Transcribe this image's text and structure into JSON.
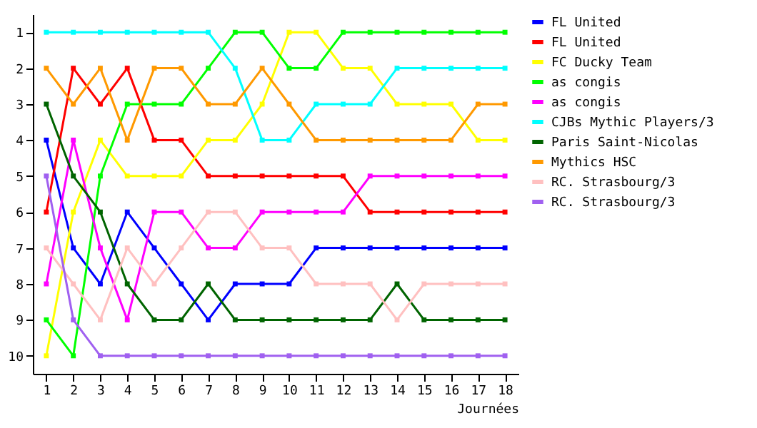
{
  "chart_data": {
    "type": "line",
    "xlabel": "Journées",
    "x": [
      1,
      2,
      3,
      4,
      5,
      6,
      7,
      8,
      9,
      10,
      11,
      12,
      13,
      14,
      15,
      16,
      17,
      18
    ],
    "xlim": [
      0.5,
      18.5
    ],
    "xticks": [
      1,
      2,
      3,
      4,
      5,
      6,
      7,
      8,
      9,
      10,
      11,
      12,
      13,
      14,
      15,
      16,
      17,
      18
    ],
    "ylim": [
      10.5,
      0.5
    ],
    "yticks": [
      1,
      2,
      3,
      4,
      5,
      6,
      7,
      8,
      9,
      10
    ],
    "grid": false,
    "legend": "right",
    "marker": "square",
    "line_style": "solid",
    "series": [
      {
        "name": "FL United",
        "color": "#0000ff",
        "values": [
          4,
          7,
          8,
          6,
          7,
          8,
          9,
          8,
          8,
          8,
          7,
          7,
          7,
          7,
          7,
          7,
          7,
          7
        ]
      },
      {
        "name": "FL United",
        "color": "#ff0000",
        "values": [
          6,
          2,
          3,
          2,
          4,
          4,
          5,
          5,
          5,
          5,
          5,
          5,
          6,
          6,
          6,
          6,
          6,
          6
        ]
      },
      {
        "name": "FC Ducky Team",
        "color": "#ffff00",
        "values": [
          10,
          6,
          4,
          5,
          5,
          5,
          4,
          4,
          3,
          1,
          1,
          2,
          2,
          3,
          3,
          3,
          4,
          4
        ]
      },
      {
        "name": "as congis",
        "color": "#00ff00",
        "values": [
          9,
          10,
          5,
          3,
          3,
          3,
          2,
          1,
          1,
          2,
          2,
          1,
          1,
          1,
          1,
          1,
          1,
          1
        ]
      },
      {
        "name": "as congis",
        "color": "#ff00ff",
        "values": [
          8,
          4,
          7,
          9,
          6,
          6,
          7,
          7,
          6,
          6,
          6,
          6,
          5,
          5,
          5,
          5,
          5,
          5
        ]
      },
      {
        "name": "CJBs Mythic Players/3",
        "color": "#00ffff",
        "values": [
          1,
          1,
          1,
          1,
          1,
          1,
          1,
          2,
          4,
          4,
          3,
          3,
          3,
          2,
          2,
          2,
          2,
          2
        ]
      },
      {
        "name": "Paris Saint-Nicolas",
        "color": "#006400",
        "values": [
          3,
          5,
          6,
          8,
          9,
          9,
          8,
          9,
          9,
          9,
          9,
          9,
          9,
          8,
          9,
          9,
          9,
          9
        ]
      },
      {
        "name": "Mythics HSC",
        "color": "#ff9900",
        "values": [
          2,
          3,
          2,
          4,
          2,
          2,
          3,
          3,
          2,
          3,
          4,
          4,
          4,
          4,
          4,
          4,
          3,
          3
        ]
      },
      {
        "name": "RC. Strasbourg/3",
        "color": "#ffc0c0",
        "values": [
          7,
          8,
          9,
          7,
          8,
          7,
          6,
          6,
          7,
          7,
          8,
          8,
          8,
          9,
          8,
          8,
          8,
          8
        ]
      },
      {
        "name": "RC. Strasbourg/3",
        "color": "#a060f0",
        "values": [
          5,
          9,
          10,
          10,
          10,
          10,
          10,
          10,
          10,
          10,
          10,
          10,
          10,
          10,
          10,
          10,
          10,
          10
        ]
      }
    ]
  }
}
